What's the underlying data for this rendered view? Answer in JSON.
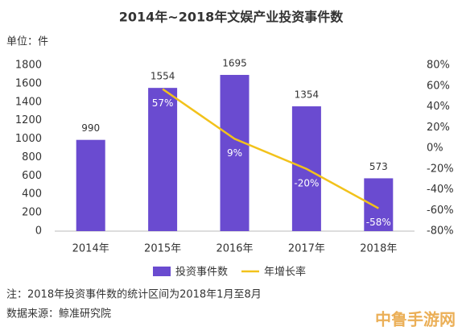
{
  "chart_data": {
    "type": "combo",
    "title": "2014年~2018年文娱产业投资事件数",
    "y_unit_label": "单位：件",
    "categories": [
      "2014年",
      "2015年",
      "2016年",
      "2017年",
      "2018年"
    ],
    "series": [
      {
        "name": "投资事件数",
        "type": "bar",
        "color": "#6a4bd0",
        "values": [
          990,
          1554,
          1695,
          1354,
          573
        ]
      },
      {
        "name": "年增长率",
        "type": "line",
        "axis": "y2",
        "color": "#f2c21b",
        "values": [
          null,
          57,
          9,
          -20,
          -58
        ],
        "value_labels": [
          null,
          "57%",
          "9%",
          "-20%",
          "-58%"
        ]
      }
    ],
    "ylim": [
      0,
      1800
    ],
    "yticks": [
      0,
      200,
      400,
      600,
      800,
      1000,
      1200,
      1400,
      1600,
      1800
    ],
    "y2lim": [
      -80,
      80
    ],
    "y2ticks": [
      {
        "value": -80,
        "label": "-80%"
      },
      {
        "value": -60,
        "label": "-60%"
      },
      {
        "value": -40,
        "label": "-40%"
      },
      {
        "value": -20,
        "label": "-20%"
      },
      {
        "value": 0,
        "label": "0%"
      },
      {
        "value": 20,
        "label": "20%"
      },
      {
        "value": 40,
        "label": "40%"
      },
      {
        "value": 60,
        "label": "60%"
      },
      {
        "value": 80,
        "label": "80%"
      }
    ],
    "notes": [
      "注：2018年投资事件数的统计区间为2018年1月至8月",
      "数据来源：鲸准研究院"
    ],
    "watermark": "中鲁手游网"
  }
}
